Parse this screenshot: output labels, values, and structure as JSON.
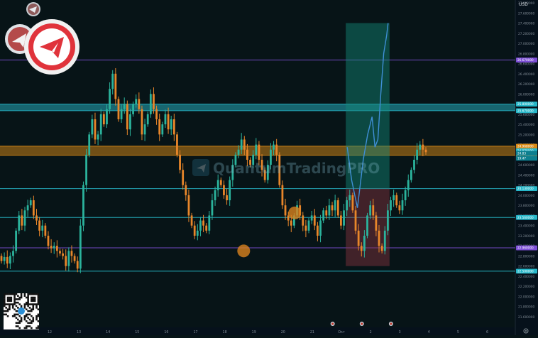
{
  "currency_label": "USD",
  "watermark": "QuantumTradingPRO",
  "chart_data": {
    "type": "candlestick",
    "title": "",
    "y_axis_ticks": [
      "27.800000",
      "27.600000",
      "27.400000",
      "27.200000",
      "27.000000",
      "26.800000",
      "26.600000",
      "26.400000",
      "26.200000",
      "26.000000",
      "25.800000",
      "25.600000",
      "25.400000",
      "25.200000",
      "25.000000",
      "24.800000",
      "24.600000",
      "24.400000",
      "24.200000",
      "24.000000",
      "23.800000",
      "23.600000",
      "23.400000",
      "23.200000",
      "23.000000",
      "22.800000",
      "22.600000",
      "22.400000",
      "22.200000",
      "22.000000",
      "21.800000",
      "21.600000"
    ],
    "x_axis_ticks": [
      "12",
      "13",
      "14",
      "15",
      "16",
      "17",
      "18",
      "19",
      "20",
      "21",
      "Окт",
      "2",
      "3",
      "4",
      "5",
      "6"
    ],
    "horizontal_levels": [
      {
        "value": 26.67,
        "label": "26.670000",
        "color": "#7d4fd6"
      },
      {
        "value": 25.8,
        "label": "25.800000",
        "color": "#27b7c9"
      },
      {
        "value": 25.67,
        "label": "25.670000",
        "color": "#27b7c9"
      },
      {
        "value": 24.968,
        "label": "24.968000",
        "color": "#d98a16"
      },
      {
        "value": 24.79,
        "label": "24.790000",
        "color": "#d98a16"
      },
      {
        "value": 24.13,
        "label": "24.130000",
        "color": "#27b7c9"
      },
      {
        "value": 23.56,
        "label": "23.560000",
        "color": "#27b7c9"
      },
      {
        "value": 22.96,
        "label": "22.960000",
        "color": "#7d4fd6"
      },
      {
        "value": 22.5,
        "label": "22.500000",
        "color": "#27b7c9"
      }
    ],
    "price_badges": [
      {
        "value": 24.878,
        "label": "24.878000",
        "color": "#27b7c9"
      },
      {
        "value": 24.83,
        "label": "24.83",
        "color": "#0d7f8f"
      },
      {
        "value": 24.73,
        "label": "19:47",
        "color": "#0d7f8f"
      }
    ],
    "zones": [
      {
        "name": "upper-supply",
        "y_from": 25.67,
        "y_to": 25.8,
        "color": "#27b7c9"
      },
      {
        "name": "key-zone",
        "y_from": 24.79,
        "y_to": 24.968,
        "color": "#d98a16"
      }
    ],
    "position": {
      "entry": 24.13,
      "target": 27.4,
      "stop": 22.6,
      "x_from": 11.15,
      "x_to": 12.65
    },
    "projection": [
      [
        11.2,
        24.95
      ],
      [
        11.35,
        24.3
      ],
      [
        11.55,
        23.75
      ],
      [
        11.75,
        24.7
      ],
      [
        11.9,
        25.2
      ],
      [
        12.05,
        25.55
      ],
      [
        12.15,
        24.95
      ],
      [
        12.25,
        25.1
      ],
      [
        12.35,
        26
      ],
      [
        12.45,
        26.8
      ],
      [
        12.55,
        27.15
      ],
      [
        12.6,
        27.4
      ]
    ],
    "circles": [
      [
        9.4,
        23.65
      ],
      [
        7.65,
        22.9
      ]
    ],
    "open": 22.8,
    "closes": [
      22.7,
      22.78,
      22.65,
      22.8,
      22.9,
      23.3,
      23.6,
      23.4,
      23.7,
      23.8,
      23.9,
      23.6,
      23.5,
      23.3,
      23.4,
      23.2,
      23.0,
      22.95,
      23.0,
      22.9,
      22.85,
      22.8,
      22.6,
      22.9,
      22.8,
      22.7,
      22.55,
      23.4,
      24.2,
      24.8,
      25.2,
      25.5,
      25.1,
      25.2,
      25.6,
      25.4,
      25.7,
      26.1,
      26.4,
      25.9,
      25.5,
      25.7,
      25.8,
      25.3,
      25.6,
      25.8,
      25.9,
      25.7,
      25.2,
      25.4,
      25.6,
      26.0,
      25.7,
      25.5,
      25.2,
      25.4,
      25.6,
      25.3,
      25.5,
      25.2,
      24.8,
      24.5,
      24.2,
      24.0,
      23.6,
      23.4,
      23.2,
      23.3,
      23.5,
      23.4,
      23.3,
      23.6,
      23.9,
      24.1,
      24.3,
      24.2,
      24.0,
      23.9,
      24.3,
      24.6,
      24.8,
      24.9,
      25.1,
      24.9,
      24.7,
      24.6,
      24.8,
      25.0,
      24.7,
      24.5,
      24.3,
      24.6,
      24.9,
      25.0,
      24.8,
      24.2,
      23.8,
      23.6,
      23.5,
      23.4,
      23.6,
      23.8,
      23.6,
      23.4,
      23.3,
      23.5,
      23.6,
      23.4,
      23.2,
      23.5,
      23.7,
      23.6,
      23.8,
      23.7,
      23.9,
      23.6,
      23.4,
      23.7,
      23.9,
      24.0,
      23.7,
      23.3,
      23.0,
      22.9,
      23.2,
      23.6,
      23.8,
      23.6,
      23.3,
      23.0,
      22.9,
      23.3,
      23.7,
      23.9,
      24.0,
      23.8,
      23.7,
      23.9,
      24.1,
      24.3,
      24.5,
      24.7,
      24.9,
      25.0,
      24.9,
      24.85
    ]
  }
}
